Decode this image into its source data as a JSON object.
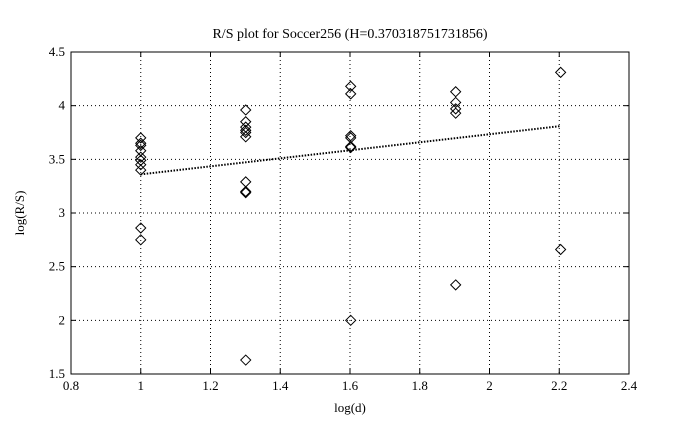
{
  "chart_data": {
    "type": "scatter",
    "title": "R/S plot for Soccer256 (H=0.370318751731856)",
    "xlabel": "log(d)",
    "ylabel": "log(R/S)",
    "xlim": [
      0.8,
      2.4
    ],
    "ylim": [
      1.5,
      4.5
    ],
    "xticks": [
      "0.8",
      "1",
      "1.2",
      "1.4",
      "1.6",
      "1.8",
      "2",
      "2.2",
      "2.4"
    ],
    "yticks": [
      "1.5",
      "2",
      "2.5",
      "3",
      "3.5",
      "4",
      "4.5"
    ],
    "grid": true,
    "marker": "diamond",
    "points": [
      {
        "x": 1.0,
        "y": 3.7
      },
      {
        "x": 1.0,
        "y": 3.65
      },
      {
        "x": 1.0,
        "y": 3.63
      },
      {
        "x": 1.0,
        "y": 3.58
      },
      {
        "x": 1.0,
        "y": 3.52
      },
      {
        "x": 1.0,
        "y": 3.49
      },
      {
        "x": 1.0,
        "y": 3.45
      },
      {
        "x": 1.0,
        "y": 3.4
      },
      {
        "x": 1.0,
        "y": 2.86
      },
      {
        "x": 1.0,
        "y": 2.75
      },
      {
        "x": 1.301,
        "y": 3.96
      },
      {
        "x": 1.301,
        "y": 3.85
      },
      {
        "x": 1.301,
        "y": 3.8
      },
      {
        "x": 1.301,
        "y": 3.77
      },
      {
        "x": 1.301,
        "y": 3.75
      },
      {
        "x": 1.301,
        "y": 3.71
      },
      {
        "x": 1.301,
        "y": 3.29
      },
      {
        "x": 1.301,
        "y": 3.2
      },
      {
        "x": 1.301,
        "y": 3.19
      },
      {
        "x": 1.301,
        "y": 1.63
      },
      {
        "x": 1.602,
        "y": 4.18
      },
      {
        "x": 1.602,
        "y": 4.11
      },
      {
        "x": 1.602,
        "y": 3.72
      },
      {
        "x": 1.602,
        "y": 3.7
      },
      {
        "x": 1.602,
        "y": 3.62
      },
      {
        "x": 1.602,
        "y": 3.61
      },
      {
        "x": 1.602,
        "y": 2.0
      },
      {
        "x": 1.903,
        "y": 4.13
      },
      {
        "x": 1.903,
        "y": 4.03
      },
      {
        "x": 1.903,
        "y": 3.97
      },
      {
        "x": 1.903,
        "y": 3.93
      },
      {
        "x": 1.903,
        "y": 2.33
      },
      {
        "x": 2.204,
        "y": 4.31
      },
      {
        "x": 2.204,
        "y": 2.66
      }
    ],
    "fit_line": {
      "x": [
        1.0,
        2.204
      ],
      "y": [
        3.36,
        3.81
      ],
      "style": "dotted"
    }
  }
}
